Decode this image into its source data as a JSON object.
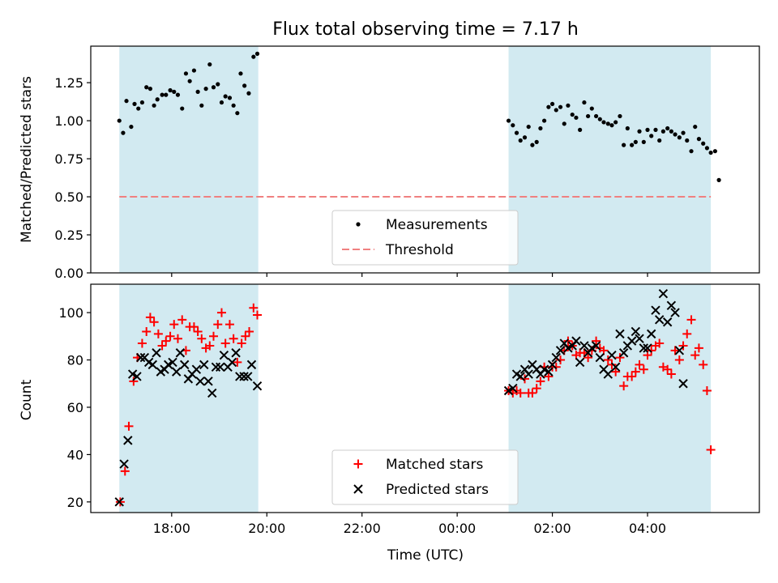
{
  "figure": {
    "title": "Flux total observing time = 7.17 h",
    "xlabel": "Time (UTC)",
    "x_ticks": [
      "18:00",
      "20:00",
      "22:00",
      "00:00",
      "02:00",
      "04:00"
    ],
    "x_tick_hours": [
      18,
      20,
      22,
      24,
      26,
      28
    ],
    "x_range_hours": [
      16.3,
      30.35
    ],
    "observing_windows_hours": [
      [
        16.9,
        19.82
      ],
      [
        25.08,
        29.33
      ]
    ],
    "window_color": "#add8e6",
    "grid": false
  },
  "chart_data": [
    {
      "type": "scatter",
      "ylabel": "Matched/Predicted stars",
      "ylim": [
        0,
        1.49
      ],
      "y_ticks": [
        "0.00",
        "0.25",
        "0.50",
        "0.75",
        "1.00",
        "1.25"
      ],
      "y_tick_values": [
        0,
        0.25,
        0.5,
        0.75,
        1.0,
        1.25
      ],
      "legend_position": "lower center",
      "threshold": {
        "name": "Threshold",
        "value": 0.5,
        "color": "#f08080",
        "style": "dashed"
      },
      "series": [
        {
          "name": "Measurements",
          "color": "#000000",
          "marker": "dot",
          "points": [
            [
              16.9,
              1.0
            ],
            [
              16.98,
              0.92
            ],
            [
              17.05,
              1.13
            ],
            [
              17.15,
              0.96
            ],
            [
              17.22,
              1.11
            ],
            [
              17.3,
              1.08
            ],
            [
              17.38,
              1.12
            ],
            [
              17.47,
              1.22
            ],
            [
              17.55,
              1.21
            ],
            [
              17.63,
              1.1
            ],
            [
              17.7,
              1.14
            ],
            [
              17.8,
              1.17
            ],
            [
              17.88,
              1.17
            ],
            [
              17.97,
              1.2
            ],
            [
              18.05,
              1.19
            ],
            [
              18.13,
              1.17
            ],
            [
              18.22,
              1.08
            ],
            [
              18.3,
              1.31
            ],
            [
              18.38,
              1.26
            ],
            [
              18.47,
              1.33
            ],
            [
              18.55,
              1.19
            ],
            [
              18.63,
              1.1
            ],
            [
              18.72,
              1.21
            ],
            [
              18.8,
              1.37
            ],
            [
              18.88,
              1.22
            ],
            [
              18.97,
              1.24
            ],
            [
              19.05,
              1.12
            ],
            [
              19.13,
              1.16
            ],
            [
              19.22,
              1.15
            ],
            [
              19.3,
              1.1
            ],
            [
              19.38,
              1.05
            ],
            [
              19.45,
              1.31
            ],
            [
              19.53,
              1.23
            ],
            [
              19.62,
              1.18
            ],
            [
              19.72,
              1.42
            ],
            [
              19.8,
              1.44
            ],
            [
              25.08,
              1.0
            ],
            [
              25.17,
              0.97
            ],
            [
              25.25,
              0.92
            ],
            [
              25.33,
              0.87
            ],
            [
              25.42,
              0.89
            ],
            [
              25.5,
              0.96
            ],
            [
              25.58,
              0.84
            ],
            [
              25.67,
              0.86
            ],
            [
              25.75,
              0.95
            ],
            [
              25.83,
              1.0
            ],
            [
              25.92,
              1.09
            ],
            [
              26.0,
              1.11
            ],
            [
              26.08,
              1.07
            ],
            [
              26.17,
              1.09
            ],
            [
              26.25,
              0.98
            ],
            [
              26.33,
              1.1
            ],
            [
              26.42,
              1.04
            ],
            [
              26.5,
              1.02
            ],
            [
              26.58,
              0.94
            ],
            [
              26.67,
              1.12
            ],
            [
              26.75,
              1.03
            ],
            [
              26.83,
              1.08
            ],
            [
              26.92,
              1.03
            ],
            [
              27.0,
              1.01
            ],
            [
              27.08,
              0.99
            ],
            [
              27.17,
              0.98
            ],
            [
              27.25,
              0.97
            ],
            [
              27.33,
              0.99
            ],
            [
              27.42,
              1.03
            ],
            [
              27.5,
              0.84
            ],
            [
              27.58,
              0.95
            ],
            [
              27.67,
              0.84
            ],
            [
              27.75,
              0.86
            ],
            [
              27.83,
              0.93
            ],
            [
              27.92,
              0.86
            ],
            [
              28.0,
              0.94
            ],
            [
              28.08,
              0.9
            ],
            [
              28.17,
              0.94
            ],
            [
              28.25,
              0.87
            ],
            [
              28.33,
              0.93
            ],
            [
              28.42,
              0.95
            ],
            [
              28.5,
              0.93
            ],
            [
              28.58,
              0.91
            ],
            [
              28.67,
              0.89
            ],
            [
              28.75,
              0.92
            ],
            [
              28.83,
              0.87
            ],
            [
              28.92,
              0.8
            ],
            [
              29.0,
              0.96
            ],
            [
              29.08,
              0.88
            ],
            [
              29.17,
              0.85
            ],
            [
              29.25,
              0.82
            ],
            [
              29.33,
              0.79
            ],
            [
              29.42,
              0.8
            ],
            [
              29.5,
              0.61
            ]
          ]
        }
      ]
    },
    {
      "type": "scatter",
      "ylabel": "Count",
      "ylim": [
        15.5,
        112
      ],
      "y_ticks": [
        "20",
        "40",
        "60",
        "80",
        "100"
      ],
      "y_tick_values": [
        20,
        40,
        60,
        80,
        100
      ],
      "legend_position": "lower center",
      "series": [
        {
          "name": "Matched stars",
          "color": "#ff0000",
          "marker": "plus",
          "points": [
            [
              16.92,
              20
            ],
            [
              17.02,
              33
            ],
            [
              17.1,
              52
            ],
            [
              17.2,
              71
            ],
            [
              17.28,
              81
            ],
            [
              17.38,
              87
            ],
            [
              17.47,
              92
            ],
            [
              17.55,
              98
            ],
            [
              17.63,
              96
            ],
            [
              17.72,
              91
            ],
            [
              17.8,
              86
            ],
            [
              17.88,
              88
            ],
            [
              17.97,
              90
            ],
            [
              18.05,
              95
            ],
            [
              18.13,
              89
            ],
            [
              18.22,
              97
            ],
            [
              18.3,
              84
            ],
            [
              18.38,
              94
            ],
            [
              18.47,
              94
            ],
            [
              18.55,
              92
            ],
            [
              18.63,
              89
            ],
            [
              18.72,
              85
            ],
            [
              18.8,
              86
            ],
            [
              18.88,
              90
            ],
            [
              18.97,
              95
            ],
            [
              19.05,
              100
            ],
            [
              19.13,
              87
            ],
            [
              19.22,
              95
            ],
            [
              19.3,
              89
            ],
            [
              19.38,
              79
            ],
            [
              19.47,
              87
            ],
            [
              19.55,
              90
            ],
            [
              19.63,
              92
            ],
            [
              19.72,
              102
            ],
            [
              19.8,
              99
            ],
            [
              25.08,
              67
            ],
            [
              25.17,
              66
            ],
            [
              25.25,
              67
            ],
            [
              25.33,
              66
            ],
            [
              25.42,
              72
            ],
            [
              25.5,
              66
            ],
            [
              25.58,
              66
            ],
            [
              25.67,
              68
            ],
            [
              25.75,
              71
            ],
            [
              25.83,
              77
            ],
            [
              25.92,
              73
            ],
            [
              26.0,
              77
            ],
            [
              26.08,
              77
            ],
            [
              26.17,
              80
            ],
            [
              26.25,
              84
            ],
            [
              26.33,
              88
            ],
            [
              26.42,
              86
            ],
            [
              26.5,
              82
            ],
            [
              26.58,
              83
            ],
            [
              26.67,
              83
            ],
            [
              26.75,
              81
            ],
            [
              26.83,
              84
            ],
            [
              26.92,
              88
            ],
            [
              27.0,
              85
            ],
            [
              27.08,
              84
            ],
            [
              27.17,
              80
            ],
            [
              27.25,
              78
            ],
            [
              27.33,
              75
            ],
            [
              27.42,
              81
            ],
            [
              27.5,
              69
            ],
            [
              27.58,
              73
            ],
            [
              27.67,
              73
            ],
            [
              27.75,
              75
            ],
            [
              27.83,
              78
            ],
            [
              27.92,
              76
            ],
            [
              28.0,
              82
            ],
            [
              28.08,
              84
            ],
            [
              28.17,
              86
            ],
            [
              28.25,
              87
            ],
            [
              28.33,
              77
            ],
            [
              28.42,
              76
            ],
            [
              28.5,
              74
            ],
            [
              28.58,
              84
            ],
            [
              28.67,
              80
            ],
            [
              28.75,
              86
            ],
            [
              28.83,
              91
            ],
            [
              28.92,
              97
            ],
            [
              29.0,
              82
            ],
            [
              29.08,
              85
            ],
            [
              29.17,
              78
            ],
            [
              29.25,
              67
            ],
            [
              29.33,
              42
            ]
          ]
        },
        {
          "name": "Predicted stars",
          "color": "#000000",
          "marker": "x",
          "points": [
            [
              16.9,
              20
            ],
            [
              17.0,
              36
            ],
            [
              17.08,
              46
            ],
            [
              17.18,
              74
            ],
            [
              17.27,
              73
            ],
            [
              17.35,
              81
            ],
            [
              17.43,
              81
            ],
            [
              17.52,
              79
            ],
            [
              17.6,
              78
            ],
            [
              17.68,
              83
            ],
            [
              17.77,
              75
            ],
            [
              17.85,
              76
            ],
            [
              17.93,
              78
            ],
            [
              18.02,
              79
            ],
            [
              18.1,
              75
            ],
            [
              18.18,
              83
            ],
            [
              18.27,
              78
            ],
            [
              18.35,
              72
            ],
            [
              18.43,
              74
            ],
            [
              18.52,
              76
            ],
            [
              18.6,
              71
            ],
            [
              18.68,
              78
            ],
            [
              18.77,
              71
            ],
            [
              18.85,
              66
            ],
            [
              18.93,
              77
            ],
            [
              19.02,
              77
            ],
            [
              19.1,
              82
            ],
            [
              19.18,
              77
            ],
            [
              19.27,
              79
            ],
            [
              19.35,
              83
            ],
            [
              19.43,
              73
            ],
            [
              19.52,
              73
            ],
            [
              19.6,
              73
            ],
            [
              19.68,
              78
            ],
            [
              19.8,
              69
            ],
            [
              25.08,
              67
            ],
            [
              25.17,
              68
            ],
            [
              25.25,
              74
            ],
            [
              25.33,
              73
            ],
            [
              25.42,
              76
            ],
            [
              25.5,
              74
            ],
            [
              25.58,
              78
            ],
            [
              25.67,
              76
            ],
            [
              25.75,
              74
            ],
            [
              25.83,
              76
            ],
            [
              25.92,
              75
            ],
            [
              26.0,
              78
            ],
            [
              26.08,
              81
            ],
            [
              26.17,
              84
            ],
            [
              26.25,
              87
            ],
            [
              26.33,
              85
            ],
            [
              26.42,
              86
            ],
            [
              26.5,
              88
            ],
            [
              26.58,
              79
            ],
            [
              26.67,
              86
            ],
            [
              26.75,
              83
            ],
            [
              26.83,
              85
            ],
            [
              26.92,
              86
            ],
            [
              27.0,
              81
            ],
            [
              27.08,
              76
            ],
            [
              27.17,
              74
            ],
            [
              27.25,
              82
            ],
            [
              27.33,
              77
            ],
            [
              27.42,
              91
            ],
            [
              27.5,
              83
            ],
            [
              27.58,
              86
            ],
            [
              27.67,
              88
            ],
            [
              27.75,
              92
            ],
            [
              27.83,
              89
            ],
            [
              27.92,
              85
            ],
            [
              28.0,
              85
            ],
            [
              28.08,
              91
            ],
            [
              28.17,
              101
            ],
            [
              28.25,
              97
            ],
            [
              28.33,
              108
            ],
            [
              28.42,
              96
            ],
            [
              28.5,
              103
            ],
            [
              28.58,
              100
            ],
            [
              28.67,
              84
            ],
            [
              28.75,
              70
            ]
          ]
        }
      ]
    }
  ]
}
